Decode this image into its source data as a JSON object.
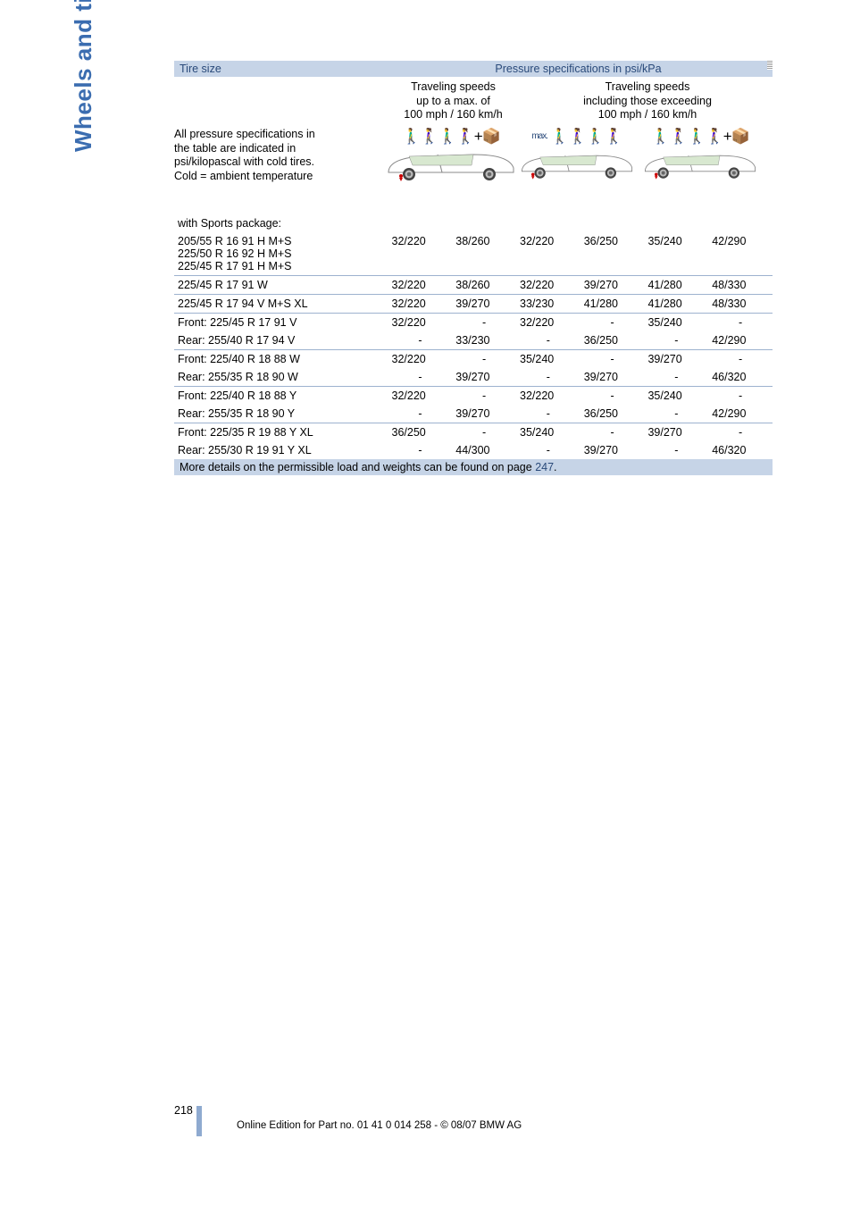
{
  "side_label": "Wheels and tires",
  "header": {
    "tire_size": "Tire size",
    "pressure_spec": "Pressure specifications in psi/kPa",
    "col_a": [
      "Traveling speeds",
      "up to a max. of",
      "100 mph / 160 km/h"
    ],
    "col_b": [
      "Traveling speeds",
      "including those exceeding",
      "100 mph / 160 km/h"
    ],
    "note": [
      "All pressure specifications in",
      "the table are indicated in",
      "psi/kilopascal with cold tires.",
      "Cold = ambient temperature"
    ],
    "max": "max."
  },
  "section_title": "with Sports package:",
  "rows": [
    {
      "label": "205/55 R 16 91 H M+S\n225/50 R 16 92 H M+S\n225/45 R 17 91 H M+S",
      "v": [
        "32/220",
        "38/260",
        "32/220",
        "36/250",
        "35/240",
        "42/290"
      ],
      "rule": false
    },
    {
      "label": "225/45 R 17 91 W",
      "v": [
        "32/220",
        "38/260",
        "32/220",
        "39/270",
        "41/280",
        "48/330"
      ],
      "rule": true
    },
    {
      "label": "225/45 R 17 94 V M+S XL",
      "v": [
        "32/220",
        "39/270",
        "33/230",
        "41/280",
        "41/280",
        "48/330"
      ],
      "rule": true
    },
    {
      "label": "Front: 225/45 R 17 91 V",
      "v": [
        "32/220",
        "-",
        "32/220",
        "-",
        "35/240",
        "-"
      ],
      "rule": true
    },
    {
      "label": "Rear: 255/40 R 17 94 V",
      "v": [
        "-",
        "33/230",
        "-",
        "36/250",
        "-",
        "42/290"
      ],
      "rule": false
    },
    {
      "label": "Front: 225/40 R 18 88 W",
      "v": [
        "32/220",
        "-",
        "35/240",
        "-",
        "39/270",
        "-"
      ],
      "rule": true
    },
    {
      "label": "Rear: 255/35 R 18 90 W",
      "v": [
        "-",
        "39/270",
        "-",
        "39/270",
        "-",
        "46/320"
      ],
      "rule": false
    },
    {
      "label": "Front: 225/40 R 18 88 Y",
      "v": [
        "32/220",
        "-",
        "32/220",
        "-",
        "35/240",
        "-"
      ],
      "rule": true
    },
    {
      "label": "Rear: 255/35 R 18 90 Y",
      "v": [
        "-",
        "39/270",
        "-",
        "36/250",
        "-",
        "42/290"
      ],
      "rule": false
    },
    {
      "label": "Front: 225/35 R 19 88 Y XL",
      "v": [
        "36/250",
        "-",
        "35/240",
        "-",
        "39/270",
        "-"
      ],
      "rule": true
    },
    {
      "label": "Rear: 255/30 R 19 91 Y XL",
      "v": [
        "-",
        "44/300",
        "-",
        "39/270",
        "-",
        "46/320"
      ],
      "rule": false
    }
  ],
  "footer_note": {
    "text": "More details on the permissible load and weights can be found on page ",
    "link": "247",
    "tail": "."
  },
  "page_number": "218",
  "bottom_line": "Online Edition for Part no. 01 41 0 014 258 - © 08/07 BMW AG",
  "colors": {
    "band": "#c6d4e7",
    "accent": "#2a4a7a",
    "rule": "#9db2cf"
  }
}
